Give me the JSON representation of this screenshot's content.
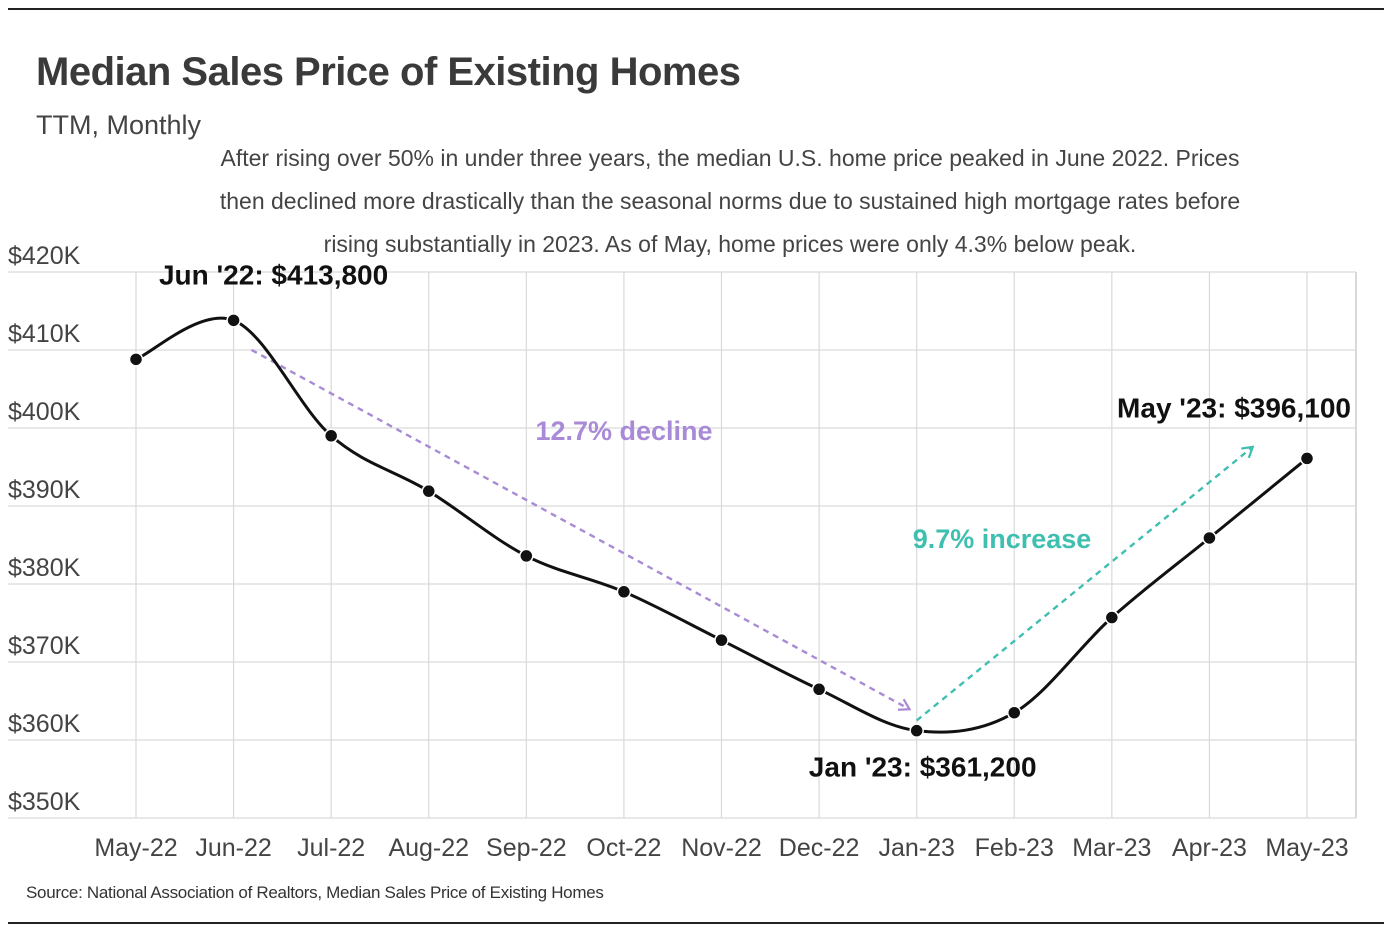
{
  "header": {
    "title": "Median Sales Price of Existing Homes",
    "subtitle": "TTM, Monthly",
    "description": "After rising over 50% in under three years, the median U.S. home price peaked in June 2022. Prices then declined more drastically than the seasonal norms due to sustained high mortgage rates before rising substantially in 2023. As of May, home prices were only 4.3% below peak."
  },
  "footer": {
    "source": "Source:  National Association of Realtors, Median Sales Price of Existing Homes"
  },
  "chart_data": {
    "type": "line",
    "title": "Median Sales Price of Existing Homes",
    "xlabel": "",
    "ylabel": "",
    "categories": [
      "May-22",
      "Jun-22",
      "Jul-22",
      "Aug-22",
      "Sep-22",
      "Oct-22",
      "Nov-22",
      "Dec-22",
      "Jan-23",
      "Feb-23",
      "Mar-23",
      "Apr-23",
      "May-23"
    ],
    "series": [
      {
        "name": "Median Sales Price",
        "values": [
          408800,
          413800,
          399000,
          391900,
          383600,
          379000,
          372800,
          366500,
          361200,
          363500,
          375700,
          385900,
          396100
        ]
      }
    ],
    "ylim": [
      350000,
      420000
    ],
    "yticks": [
      350000,
      360000,
      370000,
      380000,
      390000,
      400000,
      410000,
      420000
    ],
    "ytick_labels": [
      "$350K",
      "$360K",
      "$370K",
      "$380K",
      "$390K",
      "$400K",
      "$410K",
      "$420K"
    ],
    "grid": true,
    "line_color": "#111111",
    "annotations": [
      {
        "label": "Jun '22: $413,800",
        "category": "Jun-22",
        "value": 413800,
        "placement": "above"
      },
      {
        "label": "Jan '23: $361,200",
        "category": "Jan-23",
        "value": 361200,
        "placement": "below"
      },
      {
        "label": "May '23: $396,100",
        "category": "May-23",
        "value": 396100,
        "placement": "above-left"
      }
    ],
    "trend_arrows": [
      {
        "label": "12.7% decline",
        "color": "#a98ad6",
        "from": {
          "category": "Jun-22",
          "value": 411800
        },
        "to": {
          "category": "Jan-23",
          "value": 364000
        }
      },
      {
        "label": "9.7% increase",
        "color": "#3fbfb0",
        "from": {
          "category": "Jan-23",
          "value": 362500
        },
        "to": {
          "category": "May-23",
          "value": 397500
        }
      }
    ]
  }
}
